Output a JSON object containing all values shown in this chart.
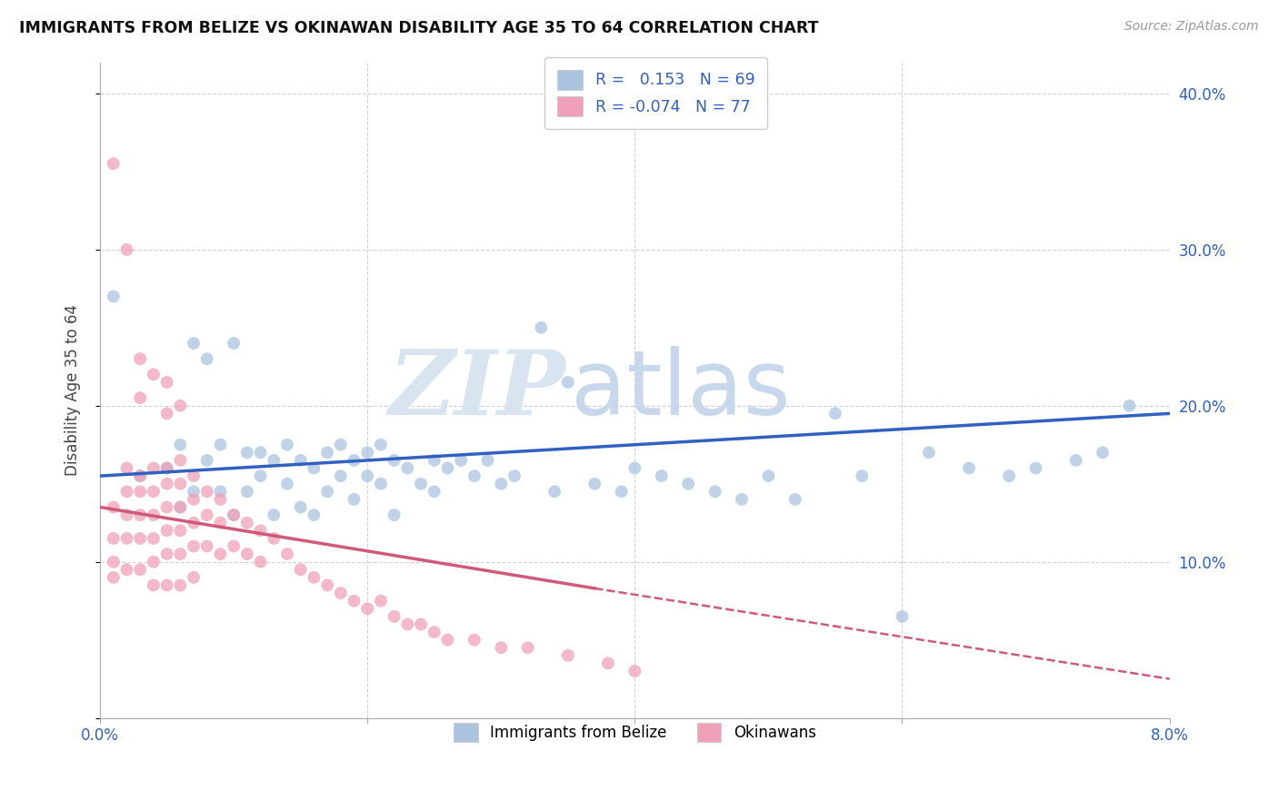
{
  "title": "IMMIGRANTS FROM BELIZE VS OKINAWAN DISABILITY AGE 35 TO 64 CORRELATION CHART",
  "source": "Source: ZipAtlas.com",
  "ylabel": "Disability Age 35 to 64",
  "xlim": [
    0.0,
    0.08
  ],
  "ylim": [
    0.0,
    0.42
  ],
  "blue_color": "#aac4e0",
  "pink_color": "#f0a0b8",
  "blue_line_color": "#3060c0",
  "pink_line_color": "#d05878",
  "blue_scatter_x": [
    0.001,
    0.003,
    0.005,
    0.006,
    0.006,
    0.007,
    0.007,
    0.008,
    0.008,
    0.009,
    0.009,
    0.01,
    0.01,
    0.011,
    0.011,
    0.012,
    0.012,
    0.013,
    0.013,
    0.014,
    0.014,
    0.015,
    0.015,
    0.016,
    0.016,
    0.017,
    0.017,
    0.018,
    0.018,
    0.019,
    0.019,
    0.02,
    0.02,
    0.021,
    0.021,
    0.022,
    0.022,
    0.023,
    0.024,
    0.025,
    0.025,
    0.026,
    0.027,
    0.028,
    0.029,
    0.03,
    0.031,
    0.033,
    0.034,
    0.035,
    0.037,
    0.039,
    0.04,
    0.042,
    0.044,
    0.046,
    0.048,
    0.05,
    0.052,
    0.055,
    0.057,
    0.06,
    0.062,
    0.065,
    0.068,
    0.07,
    0.073,
    0.075,
    0.077
  ],
  "blue_scatter_y": [
    0.27,
    0.155,
    0.16,
    0.175,
    0.135,
    0.24,
    0.145,
    0.23,
    0.165,
    0.175,
    0.145,
    0.24,
    0.13,
    0.17,
    0.145,
    0.17,
    0.155,
    0.165,
    0.13,
    0.175,
    0.15,
    0.165,
    0.135,
    0.16,
    0.13,
    0.17,
    0.145,
    0.175,
    0.155,
    0.165,
    0.14,
    0.17,
    0.155,
    0.175,
    0.15,
    0.165,
    0.13,
    0.16,
    0.15,
    0.165,
    0.145,
    0.16,
    0.165,
    0.155,
    0.165,
    0.15,
    0.155,
    0.25,
    0.145,
    0.215,
    0.15,
    0.145,
    0.16,
    0.155,
    0.15,
    0.145,
    0.14,
    0.155,
    0.14,
    0.195,
    0.155,
    0.065,
    0.17,
    0.16,
    0.155,
    0.16,
    0.165,
    0.17,
    0.2
  ],
  "pink_scatter_x": [
    0.001,
    0.001,
    0.001,
    0.001,
    0.002,
    0.002,
    0.002,
    0.002,
    0.002,
    0.003,
    0.003,
    0.003,
    0.003,
    0.003,
    0.004,
    0.004,
    0.004,
    0.004,
    0.004,
    0.004,
    0.005,
    0.005,
    0.005,
    0.005,
    0.005,
    0.005,
    0.006,
    0.006,
    0.006,
    0.006,
    0.006,
    0.006,
    0.007,
    0.007,
    0.007,
    0.007,
    0.007,
    0.008,
    0.008,
    0.008,
    0.009,
    0.009,
    0.009,
    0.01,
    0.01,
    0.011,
    0.011,
    0.012,
    0.012,
    0.013,
    0.014,
    0.015,
    0.016,
    0.017,
    0.018,
    0.019,
    0.02,
    0.021,
    0.022,
    0.023,
    0.024,
    0.025,
    0.026,
    0.028,
    0.03,
    0.032,
    0.035,
    0.038,
    0.04,
    0.001,
    0.002,
    0.003,
    0.003,
    0.004,
    0.005,
    0.005,
    0.006
  ],
  "pink_scatter_y": [
    0.135,
    0.115,
    0.1,
    0.09,
    0.16,
    0.145,
    0.13,
    0.115,
    0.095,
    0.155,
    0.145,
    0.13,
    0.115,
    0.095,
    0.16,
    0.145,
    0.13,
    0.115,
    0.1,
    0.085,
    0.16,
    0.15,
    0.135,
    0.12,
    0.105,
    0.085,
    0.165,
    0.15,
    0.135,
    0.12,
    0.105,
    0.085,
    0.155,
    0.14,
    0.125,
    0.11,
    0.09,
    0.145,
    0.13,
    0.11,
    0.14,
    0.125,
    0.105,
    0.13,
    0.11,
    0.125,
    0.105,
    0.12,
    0.1,
    0.115,
    0.105,
    0.095,
    0.09,
    0.085,
    0.08,
    0.075,
    0.07,
    0.075,
    0.065,
    0.06,
    0.06,
    0.055,
    0.05,
    0.05,
    0.045,
    0.045,
    0.04,
    0.035,
    0.03,
    0.355,
    0.3,
    0.23,
    0.205,
    0.22,
    0.215,
    0.195,
    0.2
  ],
  "background_color": "#ffffff",
  "grid_color": "#d0d0d8"
}
